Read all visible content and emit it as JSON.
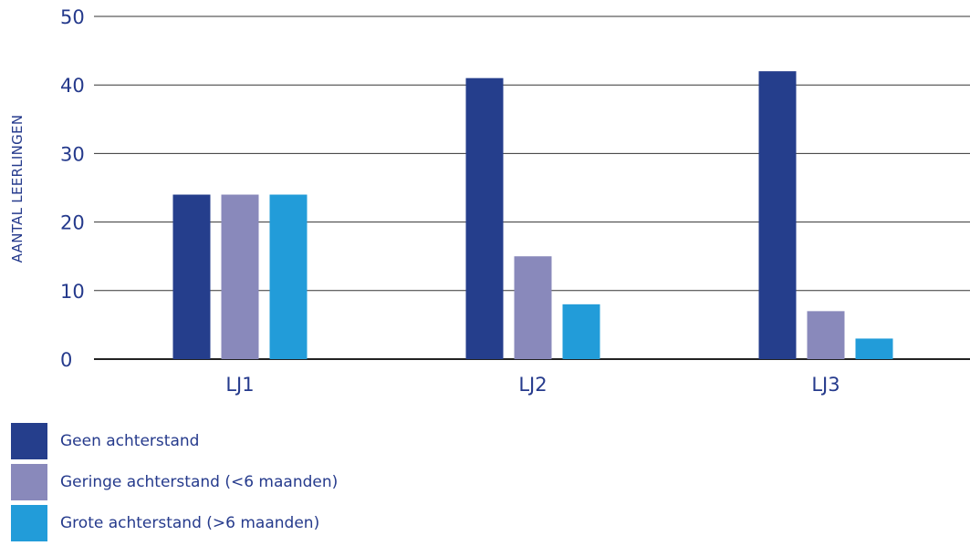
{
  "chart_data": {
    "type": "bar",
    "categories": [
      "LJ1",
      "LJ2",
      "LJ3"
    ],
    "series": [
      {
        "name": "Geen achterstand",
        "color": "#253e8c",
        "values": [
          24,
          41,
          42
        ]
      },
      {
        "name": "Geringe achterstand (<6 maanden)",
        "color": "#8989bb",
        "values": [
          24,
          15,
          7
        ]
      },
      {
        "name": "Grote achterstand (>6 maanden)",
        "color": "#229cd9",
        "values": [
          24,
          8,
          3
        ]
      }
    ],
    "ylabel": "AANTAL LEERLINGEN",
    "ylim": [
      0,
      50
    ],
    "yticks": [
      0,
      10,
      20,
      30,
      40,
      50
    ],
    "grid": true,
    "legend_position": "bottom-left"
  }
}
